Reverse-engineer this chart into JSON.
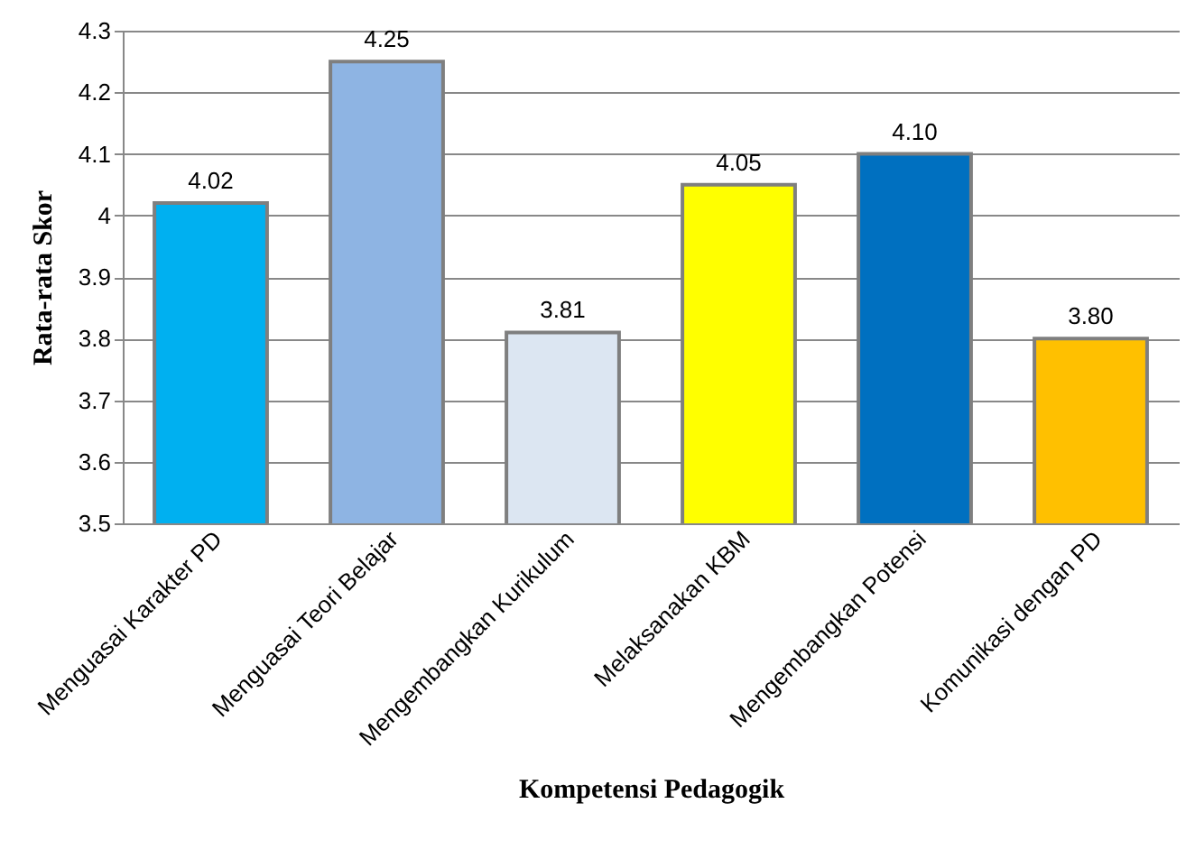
{
  "chart_data": {
    "type": "bar",
    "xlabel": "Kompetensi Pedagogik",
    "ylabel": "Rata-rata Skor",
    "categories": [
      "Menguasai Karakter PD",
      "Menguasai Teori Belajar",
      "Mengembangkan Kurikulum",
      "Melaksanakan KBM",
      "Mengembangkan Potensi",
      "Komunikasi dengan PD"
    ],
    "values": [
      4.02,
      4.25,
      3.81,
      4.05,
      4.1,
      3.8
    ],
    "value_labels": [
      "4.02",
      "4.25",
      "3.81",
      "4.05",
      "4.10",
      "3.80"
    ],
    "colors": [
      "#00b0f0",
      "#8eb4e3",
      "#dce6f2",
      "#ffff00",
      "#0070c0",
      "#ffc000"
    ],
    "ylim": [
      3.5,
      4.3
    ],
    "yticks": [
      3.5,
      3.6,
      3.7,
      3.8,
      3.9,
      4,
      4.1,
      4.2,
      4.3
    ],
    "grid": "y"
  }
}
